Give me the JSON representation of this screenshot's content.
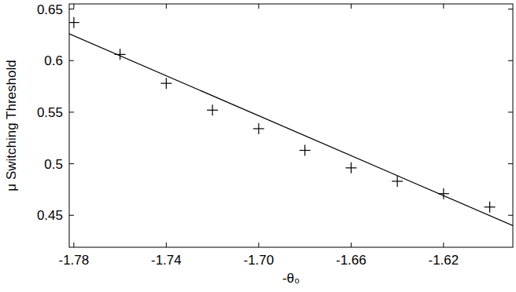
{
  "chart_data": {
    "type": "scatter",
    "x_label": "-θ₀",
    "y_label": "μ Switching Threshold",
    "xlim": [
      -1.782,
      -1.59
    ],
    "ylim": [
      0.419,
      0.655
    ],
    "xticks": [
      -1.78,
      -1.74,
      {
        "value": -1.7,
        "label": "-1.70"
      },
      -1.66,
      -1.62
    ],
    "yticks": [
      0.45,
      0.5,
      0.55,
      0.6,
      0.65
    ],
    "grid": false,
    "series": [
      {
        "type": "scatter",
        "marker": "plus",
        "color": "#000000",
        "x": [
          -1.78,
          -1.76,
          -1.74,
          -1.72,
          -1.7,
          -1.68,
          -1.66,
          -1.64,
          -1.62,
          -1.6
        ],
        "values": [
          0.637,
          0.606,
          0.578,
          0.552,
          0.534,
          0.513,
          0.496,
          0.483,
          0.471,
          0.458
        ]
      },
      {
        "type": "line",
        "line_style": "solid",
        "color": "#000000",
        "x": [
          -1.782,
          -1.59
        ],
        "values": [
          0.626,
          0.44
        ]
      }
    ]
  }
}
